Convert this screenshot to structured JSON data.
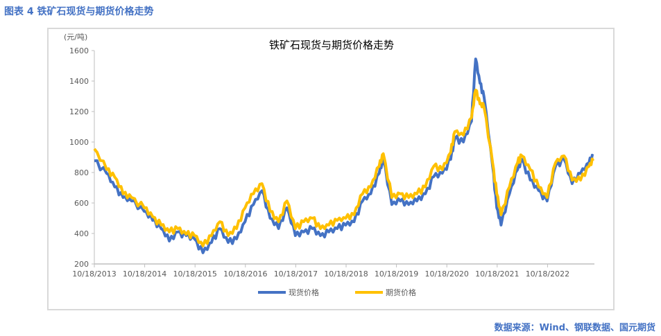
{
  "figure_label": "图表 4 铁矿石现货与期货价格走势",
  "source": "数据来源：Wind、钢联数据、国元期货",
  "colors": {
    "spot": "#4472c4",
    "futures": "#ffc000",
    "accent": "#4472c4"
  },
  "chart_data": {
    "type": "line",
    "title": "铁矿石现货与期货价格走势",
    "ylabel": "(元/吨)",
    "ylim": [
      200,
      1600
    ],
    "yticks": [
      "200",
      "400",
      "600",
      "800",
      "1000",
      "1200",
      "1400",
      "1600"
    ],
    "xticks": [
      "10/18/2013",
      "10/18/2014",
      "10/18/2015",
      "10/18/2016",
      "10/18/2017",
      "10/18/2018",
      "10/18/2019",
      "10/18/2020",
      "10/18/2021",
      "10/18/2022"
    ],
    "xlim": [
      "2013-10-18",
      "2023-09-30"
    ],
    "grid": false,
    "legend": "bottom",
    "x": [
      "2013-10",
      "2014-01",
      "2014-03",
      "2014-05",
      "2014-07",
      "2014-10",
      "2014-12",
      "2015-02",
      "2015-04",
      "2015-06",
      "2015-08",
      "2015-10",
      "2015-12",
      "2016-02",
      "2016-04",
      "2016-06",
      "2016-08",
      "2016-10",
      "2016-12",
      "2017-02",
      "2017-04",
      "2017-06",
      "2017-08",
      "2017-10",
      "2017-12",
      "2018-02",
      "2018-04",
      "2018-06",
      "2018-08",
      "2018-10",
      "2018-12",
      "2019-02",
      "2019-04",
      "2019-06",
      "2019-07",
      "2019-09",
      "2019-11",
      "2020-01",
      "2020-03",
      "2020-05",
      "2020-07",
      "2020-09",
      "2020-11",
      "2020-12",
      "2021-02",
      "2021-04",
      "2021-05",
      "2021-06",
      "2021-07",
      "2021-09",
      "2021-10",
      "2021-11",
      "2022-01",
      "2022-03",
      "2022-04",
      "2022-06",
      "2022-08",
      "2022-10",
      "2022-12",
      "2023-02",
      "2023-04",
      "2023-06",
      "2023-08",
      "2023-09"
    ],
    "series": [
      {
        "name": "现货价格",
        "values": [
          877,
          795,
          705,
          636,
          613,
          545,
          486,
          432,
          350,
          410,
          386,
          364,
          273,
          341,
          432,
          341,
          364,
          477,
          590,
          680,
          500,
          432,
          568,
          386,
          410,
          432,
          386,
          410,
          432,
          455,
          477,
          613,
          660,
          795,
          886,
          590,
          613,
          590,
          613,
          660,
          773,
          795,
          886,
          1023,
          1000,
          1136,
          1545,
          1386,
          1295,
          841,
          568,
          455,
          660,
          818,
          886,
          750,
          682,
          613,
          841,
          886,
          727,
          795,
          864,
          909
        ]
      },
      {
        "name": "期货价格",
        "values": [
          955,
          820,
          770,
          660,
          636,
          568,
          510,
          455,
          410,
          432,
          395,
          386,
          318,
          386,
          477,
          386,
          432,
          568,
          660,
          727,
          545,
          477,
          613,
          432,
          477,
          500,
          432,
          455,
          486,
          500,
          523,
          660,
          705,
          841,
          923,
          636,
          660,
          636,
          660,
          705,
          841,
          818,
          932,
          1068,
          1045,
          1159,
          1341,
          1250,
          1227,
          864,
          660,
          523,
          705,
          864,
          909,
          818,
          705,
          636,
          864,
          909,
          750,
          750,
          841,
          877
        ]
      }
    ]
  }
}
